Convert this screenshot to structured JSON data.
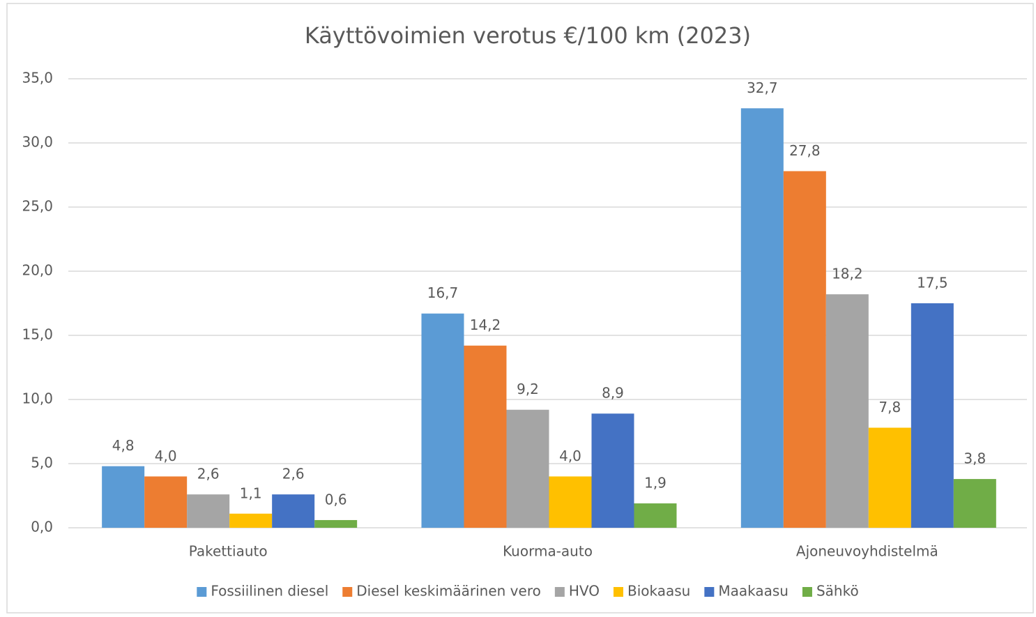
{
  "chart_data": {
    "type": "bar",
    "title": "Käyttövoimien verotus €/100 km (2023)",
    "categories": [
      "Pakettiauto",
      "Kuorma-auto",
      "Ajoneuvoyhdistelmä"
    ],
    "series": [
      {
        "name": "Fossiilinen diesel",
        "color": "#5b9bd5",
        "values": [
          4.8,
          16.7,
          32.7
        ],
        "value_labels": [
          "4,8",
          "16,7",
          "32,7"
        ]
      },
      {
        "name": "Diesel keskimäärinen vero",
        "color": "#ed7d31",
        "values": [
          4.0,
          14.2,
          27.8
        ],
        "value_labels": [
          "4,0",
          "14,2",
          "27,8"
        ]
      },
      {
        "name": "HVO",
        "color": "#a5a5a5",
        "values": [
          2.6,
          9.2,
          18.2
        ],
        "value_labels": [
          "2,6",
          "9,2",
          "18,2"
        ]
      },
      {
        "name": "Biokaasu",
        "color": "#ffc000",
        "values": [
          1.1,
          4.0,
          7.8
        ],
        "value_labels": [
          "1,1",
          "4,0",
          "7,8"
        ]
      },
      {
        "name": "Maakaasu",
        "color": "#4472c4",
        "values": [
          2.6,
          8.9,
          17.5
        ],
        "value_labels": [
          "2,6",
          "8,9",
          "17,5"
        ]
      },
      {
        "name": "Sähkö",
        "color": "#70ad47",
        "values": [
          0.6,
          1.9,
          3.8
        ],
        "value_labels": [
          "0,6",
          "1,9",
          "3,8"
        ]
      }
    ],
    "ylim": [
      0,
      35
    ],
    "yticks": [
      {
        "value": 0,
        "label": "0,0"
      },
      {
        "value": 5,
        "label": "5,0"
      },
      {
        "value": 10,
        "label": "10,0"
      },
      {
        "value": 15,
        "label": "15,0"
      },
      {
        "value": 20,
        "label": "20,0"
      },
      {
        "value": 25,
        "label": "25,0"
      },
      {
        "value": 30,
        "label": "30,0"
      },
      {
        "value": 35,
        "label": "35,0"
      }
    ],
    "grid": true,
    "legend": "bottom"
  }
}
